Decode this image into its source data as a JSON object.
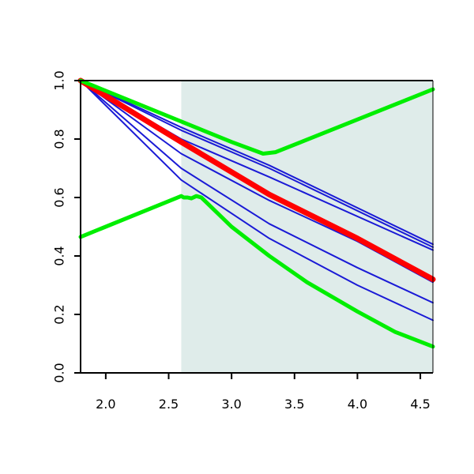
{
  "chart_data": {
    "type": "line",
    "title": "",
    "xlabel": "",
    "ylabel": "",
    "xlim": [
      1.8,
      4.6
    ],
    "ylim": [
      0.0,
      1.0
    ],
    "x_ticks": [
      2.0,
      2.5,
      3.0,
      3.5,
      4.0,
      4.5
    ],
    "x_tick_labels": [
      "2.0",
      "2.5",
      "3.0",
      "3.5",
      "4.0",
      "4.5"
    ],
    "y_ticks": [
      0.0,
      0.2,
      0.4,
      0.6,
      0.8,
      1.0
    ],
    "y_tick_labels": [
      "0.0",
      "0.2",
      "0.4",
      "0.6",
      "0.8",
      "1.0"
    ],
    "grid": false,
    "legend": "none",
    "shaded_region": {
      "x_from": 2.6,
      "x_to": 4.6,
      "color": "#dfecea"
    },
    "series": [
      {
        "color": "#1a1ad6",
        "width": 2,
        "x": [
          1.8,
          2.6,
          3.3,
          4.6
        ],
        "y": [
          1.0,
          0.84,
          0.71,
          0.44
        ]
      },
      {
        "color": "#1a1ad6",
        "width": 2,
        "x": [
          1.8,
          2.6,
          3.3,
          4.6
        ],
        "y": [
          1.0,
          0.83,
          0.7,
          0.43
        ]
      },
      {
        "color": "#1a1ad6",
        "width": 2,
        "x": [
          1.8,
          2.6,
          3.3,
          4.6
        ],
        "y": [
          1.0,
          0.8,
          0.67,
          0.42
        ]
      },
      {
        "color": "#1a1ad6",
        "width": 2,
        "x": [
          1.8,
          2.6,
          3.3,
          4.0,
          4.6
        ],
        "y": [
          1.0,
          0.75,
          0.59,
          0.45,
          0.31
        ]
      },
      {
        "color": "#1a1ad6",
        "width": 2,
        "x": [
          1.8,
          2.6,
          3.3,
          4.0,
          4.6
        ],
        "y": [
          1.0,
          0.7,
          0.51,
          0.36,
          0.24
        ]
      },
      {
        "color": "#1a1ad6",
        "width": 2,
        "x": [
          1.8,
          2.6,
          3.3,
          4.0,
          4.6
        ],
        "y": [
          1.0,
          0.66,
          0.46,
          0.3,
          0.18
        ]
      },
      {
        "color": "#ff0000",
        "width": 7,
        "x": [
          1.8,
          2.6,
          3.3,
          4.0,
          4.6
        ],
        "y": [
          1.0,
          0.79,
          0.61,
          0.46,
          0.32
        ]
      },
      {
        "color": "#00ee00",
        "width": 5,
        "x": [
          1.8,
          2.6,
          3.0,
          3.25,
          3.35,
          4.6
        ],
        "y": [
          1.0,
          0.86,
          0.79,
          0.75,
          0.755,
          0.97
        ]
      },
      {
        "color": "#00ee00",
        "width": 5,
        "x": [
          1.8,
          2.6,
          2.62,
          2.65,
          2.68,
          2.72,
          2.76,
          3.0,
          3.3,
          3.6,
          4.0,
          4.3,
          4.6
        ],
        "y": [
          0.465,
          0.605,
          0.6,
          0.6,
          0.597,
          0.605,
          0.6,
          0.5,
          0.4,
          0.31,
          0.21,
          0.14,
          0.09
        ]
      }
    ]
  }
}
